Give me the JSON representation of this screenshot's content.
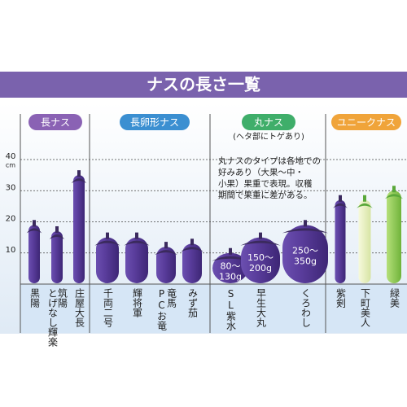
{
  "chart_data": {
    "type": "bar",
    "title": "ナスの長さ一覧",
    "unit": "cm",
    "ylim": [
      0,
      40
    ],
    "yticks": [
      10,
      20,
      30,
      40
    ],
    "grid": true,
    "note": "(ヘタ部にトゲあり)",
    "paragraph": [
      "丸ナスのタイプは各地での",
      "好みあり（大果〜中・",
      "小果）果重で表現。収穫",
      "期間で果重に差がある。"
    ],
    "groups": [
      {
        "name": "長ナス",
        "color": "#8a62b4",
        "categories": [
          [
            "黒陽"
          ],
          [
            "筑陽",
            "とげなし輝楽"
          ],
          [
            "庄屋大長"
          ]
        ],
        "values": [
          19,
          17,
          35
        ]
      },
      {
        "name": "長卵形ナス",
        "color": "#3b8fd1",
        "categories": [
          [
            "千両二号"
          ],
          [
            "輝将軍"
          ],
          [
            "竜馬",
            "PCお竜"
          ],
          [
            "みず茄"
          ]
        ],
        "values": [
          15,
          15,
          12,
          13
        ]
      },
      {
        "name": "丸ナス",
        "color": "#3fae6a",
        "categories": [
          [
            "SL紫水"
          ],
          [
            "早生大丸"
          ],
          [
            "くろわし"
          ]
        ],
        "values": [
          10,
          15,
          19
        ],
        "value_labels": [
          [
            "80〜",
            "130g"
          ],
          [
            "150〜",
            "200g"
          ],
          [
            "250〜",
            "350g"
          ]
        ]
      },
      {
        "name": "ユニークナス",
        "color": "#f0a43a",
        "categories": [
          [
            "紫剣"
          ],
          [
            "下町美人"
          ],
          [
            "緑美"
          ]
        ],
        "values": [
          27,
          27,
          30
        ]
      }
    ]
  }
}
